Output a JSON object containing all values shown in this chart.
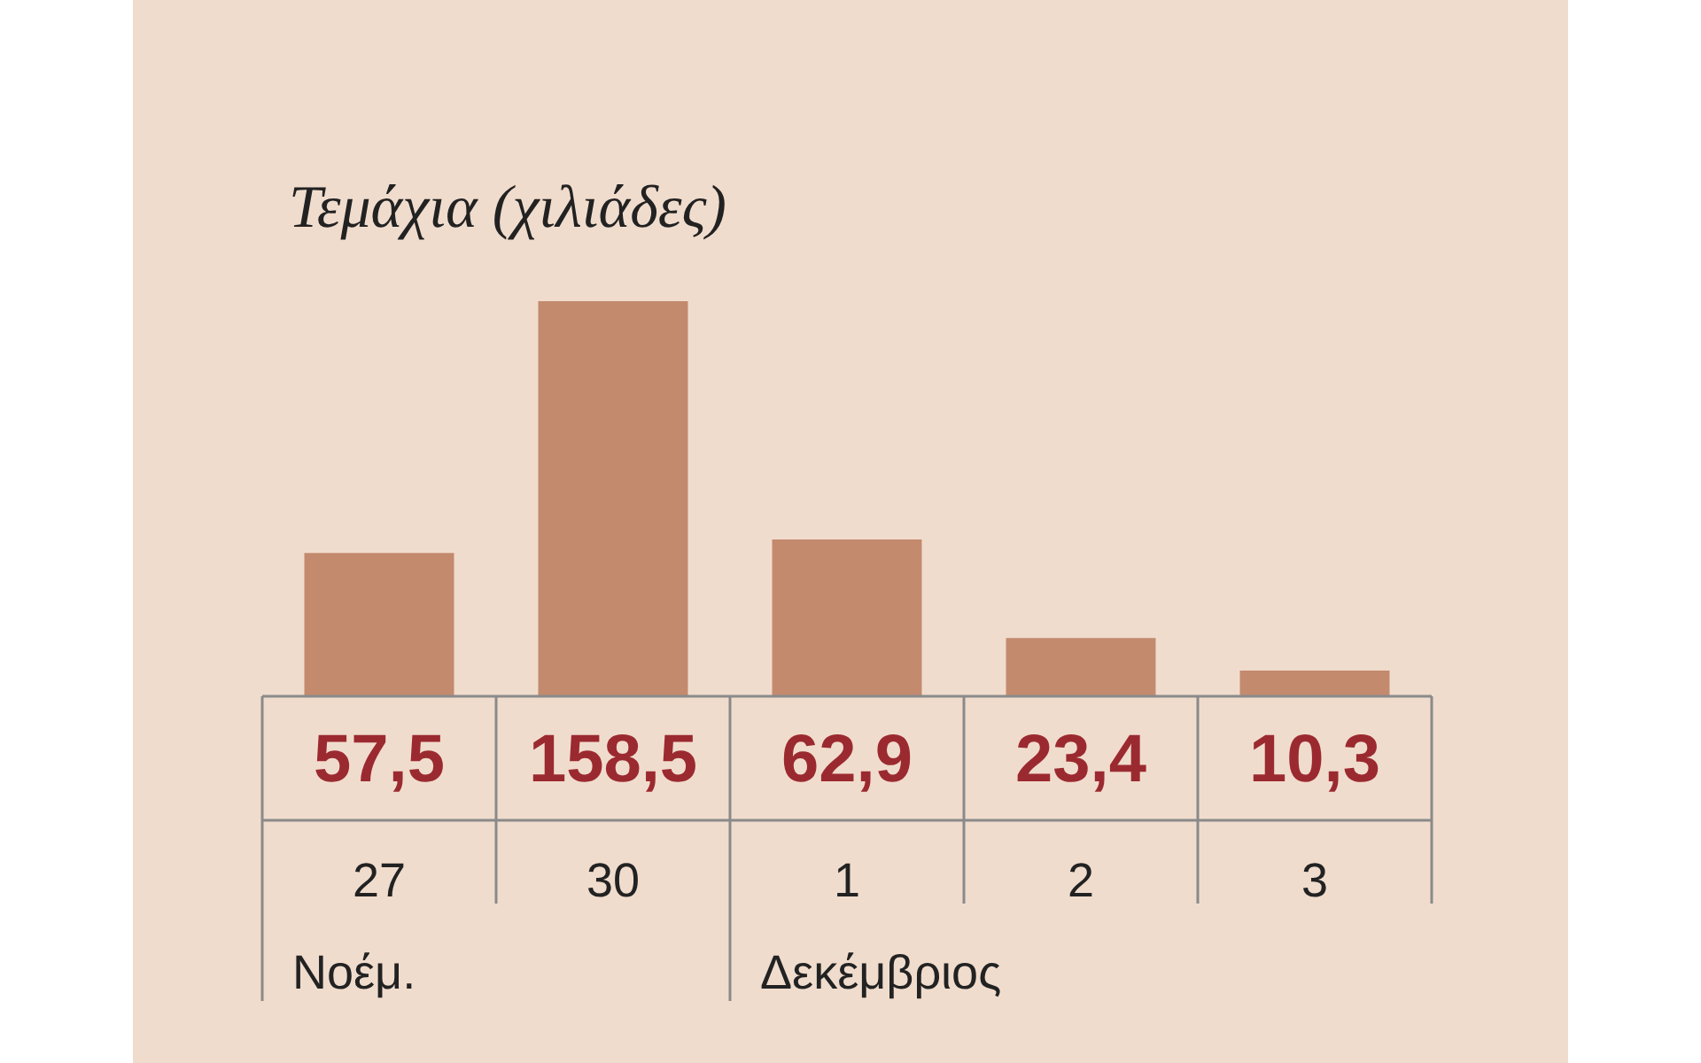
{
  "chart_data": {
    "type": "bar",
    "title": "Τεμάχια (χιλιάδες)",
    "categories": [
      "27",
      "30",
      "1",
      "2",
      "3"
    ],
    "values": [
      57.5,
      158.5,
      62.9,
      23.4,
      10.3
    ],
    "value_labels": [
      "57,5",
      "158,5",
      "62,9",
      "23,4",
      "10,3"
    ],
    "color": "#c38a6e",
    "annotations": [
      "Νοέμ.",
      "Δεκέμβριος"
    ]
  }
}
